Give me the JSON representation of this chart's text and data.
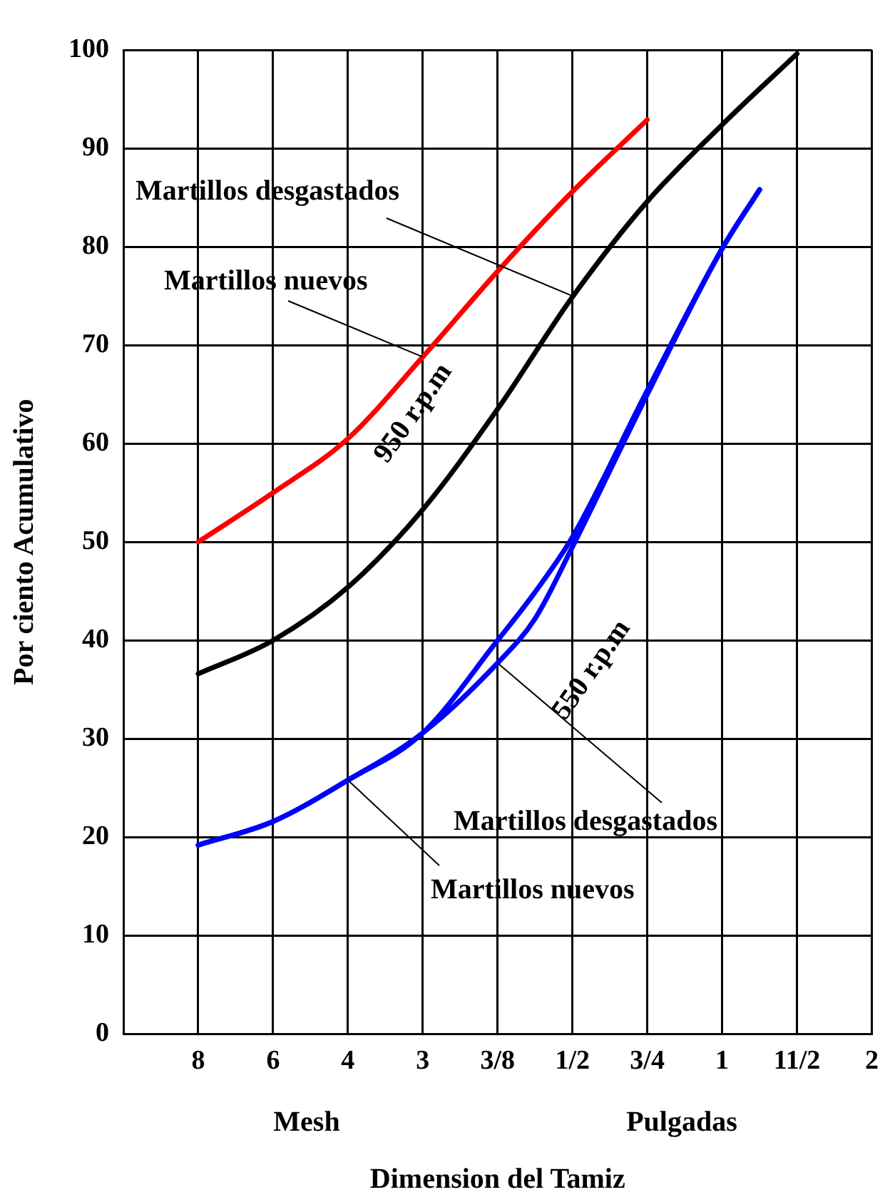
{
  "chart_data": {
    "type": "line",
    "xlabel": "Dimension del Tamiz",
    "ylabel": "Por ciento Acumulativo",
    "categories": [
      null,
      null,
      "8",
      null,
      "6",
      null,
      "4",
      null,
      "3",
      null,
      "3/8",
      null,
      "1/2",
      null,
      "3/4",
      null,
      "1",
      null,
      "11/2",
      null,
      "2"
    ],
    "ylim": [
      0,
      100
    ],
    "yticks": [
      0,
      10,
      20,
      30,
      40,
      50,
      60,
      70,
      80,
      90,
      100
    ],
    "grid": true,
    "marker": "none",
    "line_style": "solid",
    "series": [
      {
        "color": "#ff0000",
        "values": [
          null,
          null,
          50,
          null,
          55,
          null,
          60.5,
          null,
          68.8,
          null,
          77.5,
          null,
          85.6,
          null,
          92.9,
          null,
          null,
          null,
          null,
          null,
          null
        ]
      },
      {
        "color": "#000000",
        "values": [
          null,
          null,
          36.6,
          null,
          40,
          null,
          45.4,
          null,
          53.3,
          null,
          63.5,
          null,
          74.9,
          null,
          84.6,
          null,
          92.4,
          null,
          99.6,
          null,
          null
        ]
      },
      {
        "color": "#0000ff",
        "values": [
          null,
          null,
          19.2,
          null,
          21.6,
          null,
          25.8,
          null,
          30.6,
          null,
          40,
          44.9,
          50.5,
          null,
          65.4,
          null,
          79.8,
          85.8,
          null,
          null,
          null
        ]
      },
      {
        "color": "#0000ff",
        "values": [
          null,
          null,
          19.2,
          null,
          21.6,
          null,
          25.8,
          null,
          30.6,
          null,
          37.7,
          42.2,
          49.5,
          null,
          65,
          null,
          79.8,
          85.8,
          null,
          null,
          null
        ]
      }
    ],
    "annotations": [
      {
        "text": "Martillos desgastados",
        "x": "1/2",
        "y": 75
      },
      {
        "text": "Martillos nuevos",
        "x": "3",
        "y": 68.8
      },
      "950 r.p.m",
      "550 r.p.m",
      {
        "text": "Martillos desgastados",
        "x": "3/8",
        "y": 37.7
      },
      {
        "text": "Martillos nuevos",
        "x": "4",
        "y": 25.8
      },
      "Mesh",
      "Pulgadas"
    ]
  }
}
